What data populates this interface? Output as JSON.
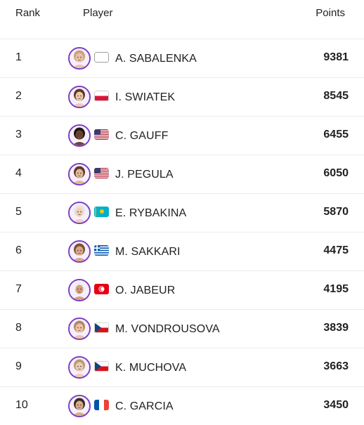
{
  "columns": {
    "rank": "Rank",
    "player": "Player",
    "points": "Points"
  },
  "accent_color": "#7b3fc4",
  "players": [
    {
      "rank": "1",
      "name": "A. SABALENKA",
      "points": "9381",
      "flag": "neutral-flag",
      "skin": "#e9c3a6",
      "hair": "#c9a27a"
    },
    {
      "rank": "2",
      "name": "I. SWIATEK",
      "points": "8545",
      "flag": "poland-flag",
      "skin": "#efc9ad",
      "hair": "#5a3a22"
    },
    {
      "rank": "3",
      "name": "C. GAUFF",
      "points": "6455",
      "flag": "usa-flag",
      "skin": "#6b4430",
      "hair": "#1e1410"
    },
    {
      "rank": "4",
      "name": "J. PEGULA",
      "points": "6050",
      "flag": "usa-flag",
      "skin": "#e2b797",
      "hair": "#5c3b27"
    },
    {
      "rank": "5",
      "name": "E. RYBAKINA",
      "points": "5870",
      "flag": "kazakhstan-flag",
      "skin": "#efd0b6",
      "hair": "#e6e6e6"
    },
    {
      "rank": "6",
      "name": "M. SAKKARI",
      "points": "4475",
      "flag": "greece-flag",
      "skin": "#d9a987",
      "hair": "#7a5234"
    },
    {
      "rank": "7",
      "name": "O. JABEUR",
      "points": "4195",
      "flag": "tunisia-flag",
      "skin": "#d1a07f",
      "hair": "#eeeeee"
    },
    {
      "rank": "8",
      "name": "M. VONDROUSOVA",
      "points": "3839",
      "flag": "czech-flag",
      "skin": "#ecc4a5",
      "hair": "#b08963"
    },
    {
      "rank": "9",
      "name": "K. MUCHOVA",
      "points": "3663",
      "flag": "czech-flag",
      "skin": "#efcbb0",
      "hair": "#b79a75"
    },
    {
      "rank": "10",
      "name": "C. GARCIA",
      "points": "3450",
      "flag": "france-flag",
      "skin": "#d9ac8c",
      "hair": "#3a2a20"
    }
  ]
}
